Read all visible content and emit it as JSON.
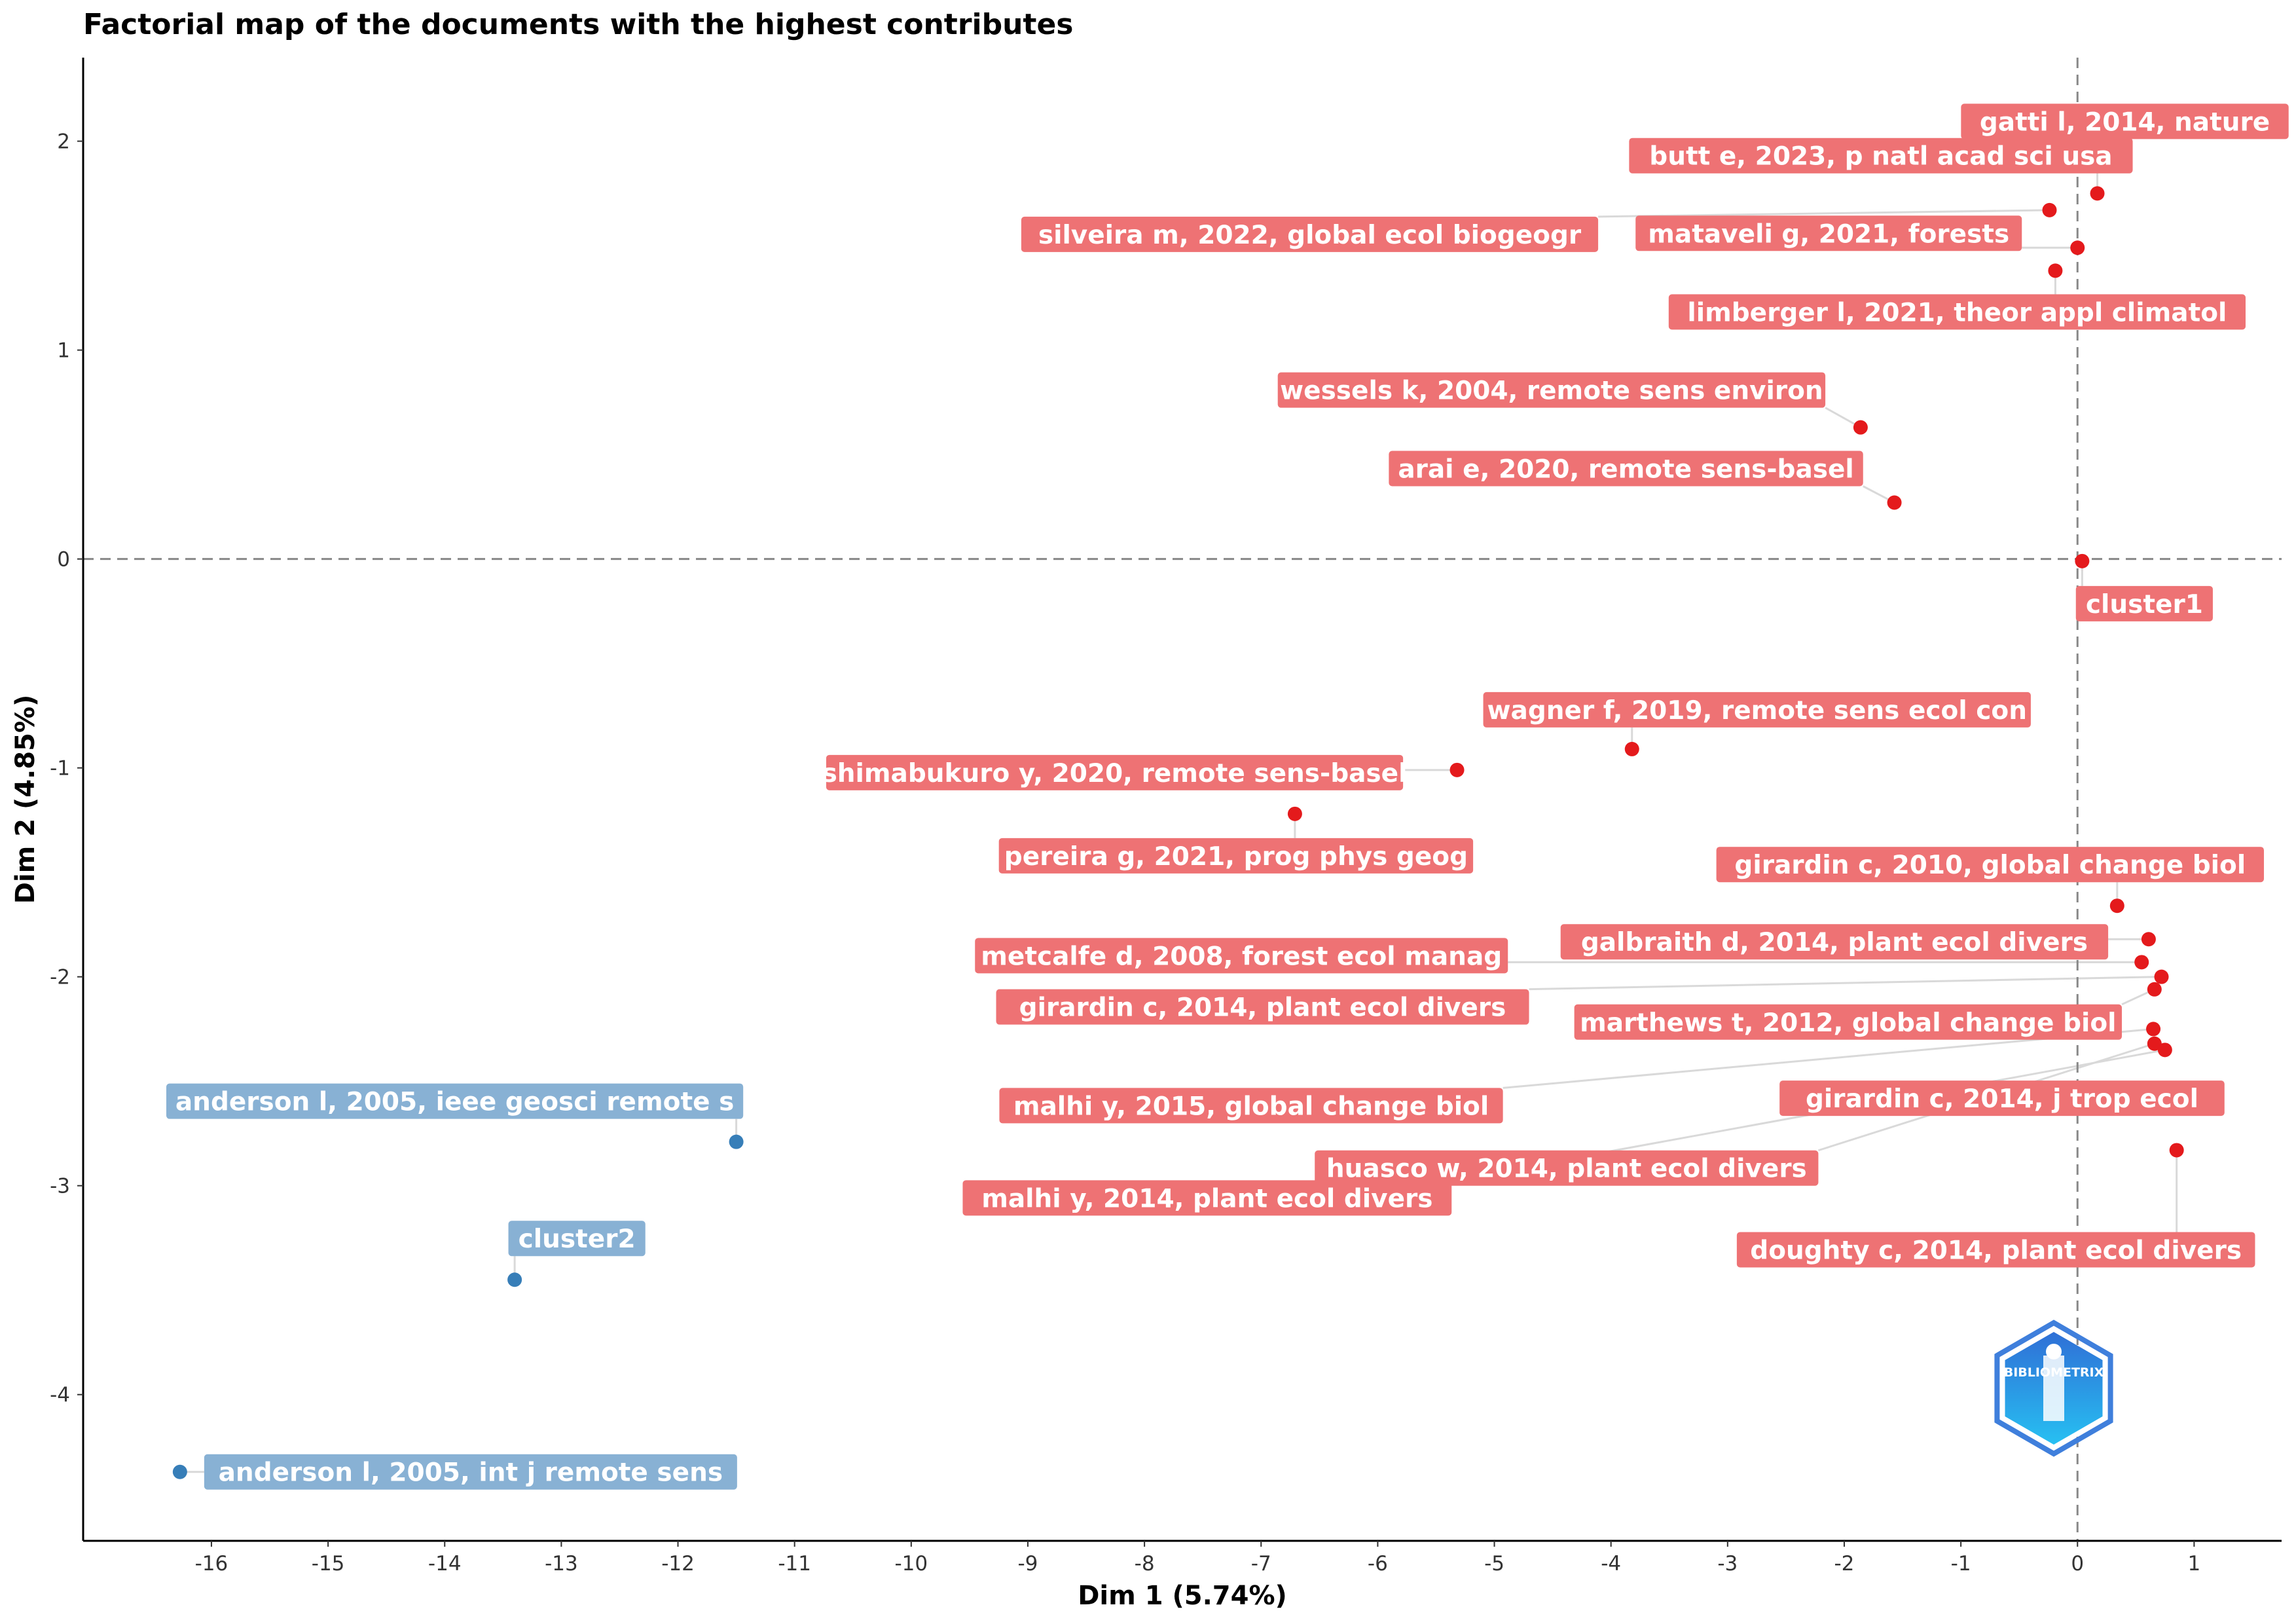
{
  "chart_data": {
    "type": "scatter",
    "title": "Factorial map of the documents with the highest contributes",
    "xlabel": "Dim 1 (5.74%)",
    "ylabel": "Dim 2 (4.85%)",
    "xlim": [
      -17.1,
      1.75
    ],
    "ylim": [
      -4.7,
      2.4
    ],
    "x_ticks": [
      -16,
      -15,
      -14,
      -13,
      -12,
      -11,
      -10,
      -9,
      -8,
      -7,
      -6,
      -5,
      -4,
      -3,
      -2,
      -1,
      0,
      1
    ],
    "y_ticks": [
      -4,
      -3,
      -2,
      -1,
      0,
      1,
      2
    ],
    "reference_lines": {
      "x": 0,
      "y": 0,
      "style": "dashed"
    },
    "grid": false,
    "colors": {
      "cluster1_point": "#e41a1c",
      "cluster1_label": "#ee7274",
      "cluster2_point": "#377eb8",
      "cluster2_label": "#88b1d4",
      "leader_line": "#d9d9d9",
      "ref_line": "#888888"
    },
    "series": [
      {
        "name": "cluster1",
        "points": [
          {
            "label": "gatti l, 2014, nature",
            "x": 0.17,
            "y": 1.75
          },
          {
            "label": "butt e, 2023, p natl acad sci usa",
            "x": -0.17,
            "y": 1.89
          },
          {
            "label": "silveira m, 2022, global ecol biogeogr",
            "x": -0.24,
            "y": 1.67
          },
          {
            "label": "mataveli g, 2021, forests",
            "x": 0.0,
            "y": 1.49
          },
          {
            "label": "limberger l, 2021, theor appl climatol",
            "x": -0.19,
            "y": 1.38
          },
          {
            "label": "wessels k, 2004, remote sens environ",
            "x": -1.86,
            "y": 0.63
          },
          {
            "label": "arai e, 2020, remote sens-basel",
            "x": -1.57,
            "y": 0.27
          },
          {
            "label": "cluster1",
            "x": 0.04,
            "y": -0.01
          },
          {
            "label": "wagner f, 2019, remote sens ecol con",
            "x": -3.82,
            "y": -0.91
          },
          {
            "label": "shimabukuro y, 2020, remote sens-basel",
            "x": -5.32,
            "y": -1.01
          },
          {
            "label": "pereira g, 2021, prog phys geog",
            "x": -6.71,
            "y": -1.22
          },
          {
            "label": "girardin c, 2010, global change biol",
            "x": 0.34,
            "y": -1.66
          },
          {
            "label": "galbraith d, 2014, plant ecol divers",
            "x": 0.61,
            "y": -1.82
          },
          {
            "label": "metcalfe d, 2008, forest ecol manag",
            "x": 0.55,
            "y": -1.93
          },
          {
            "label": "girardin c, 2014, plant ecol divers",
            "x": 0.72,
            "y": -2.0
          },
          {
            "label": "marthews t, 2012, global change biol",
            "x": 0.66,
            "y": -2.06
          },
          {
            "label": "malhi y, 2015, global change biol",
            "x": 0.65,
            "y": -2.25
          },
          {
            "label": "huasco w, 2014, plant ecol divers",
            "x": 0.66,
            "y": -2.32
          },
          {
            "label": "malhi y, 2014, plant ecol divers",
            "x": 0.75,
            "y": -2.35
          },
          {
            "label": "girardin c, 2014, j trop ecol",
            "x": 0.79,
            "y": -2.55
          },
          {
            "label": "doughty c, 2014, plant ecol divers",
            "x": 0.85,
            "y": -2.83
          }
        ]
      },
      {
        "name": "cluster2",
        "points": [
          {
            "label": "anderson l, 2005, ieee geosci remote s",
            "x": -11.5,
            "y": -2.79
          },
          {
            "label": "cluster2",
            "x": -13.4,
            "y": -3.45
          },
          {
            "label": "anderson l, 2005, int j remote sens",
            "x": -16.27,
            "y": -4.37
          }
        ]
      }
    ],
    "logo": "BIBLIOMETRIX"
  }
}
